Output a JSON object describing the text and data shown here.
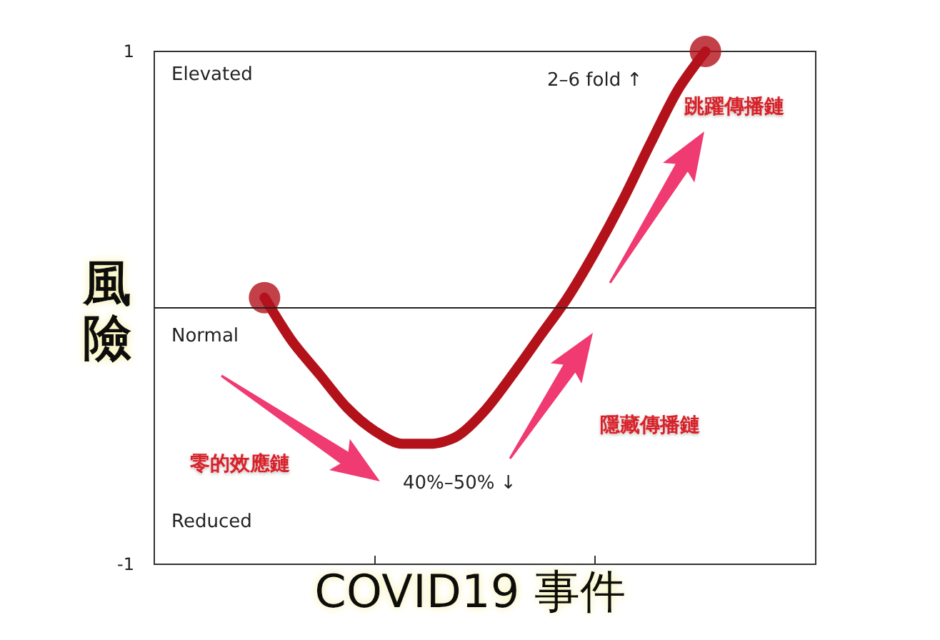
{
  "chart_data": {
    "type": "line",
    "xlabel": "COVID19 事件",
    "ylabel": "風險",
    "categories": [
      null,
      null,
      null,
      null,
      null,
      null,
      null,
      null,
      null,
      null,
      null,
      null,
      null,
      null,
      null,
      null,
      null,
      null,
      null,
      null,
      null,
      null,
      null,
      null,
      null
    ],
    "series": [
      {
        "color": "#b3121b",
        "marker": "none",
        "values": [
          null,
          null,
          null,
          null,
          0.04,
          -0.13,
          -0.26,
          -0.39,
          -0.48,
          -0.53,
          -0.53,
          -0.5,
          -0.4,
          -0.26,
          -0.11,
          0.04,
          0.22,
          0.42,
          0.64,
          0.85,
          1.0,
          null,
          null,
          null,
          null
        ]
      },
      {
        "type": "scatter",
        "color": "#b3121b",
        "marker": "circle",
        "values": [
          null,
          null,
          null,
          null,
          0.04,
          null,
          null,
          null,
          null,
          null,
          null,
          null,
          null,
          null,
          null,
          null,
          null,
          null,
          null,
          null,
          1.0,
          null,
          null,
          null,
          null
        ]
      }
    ],
    "ylim": [
      -1,
      1
    ],
    "yticks": [
      -1,
      1
    ],
    "tick_labels": "y",
    "grid": false,
    "ref_lines": [
      {
        "axis": "y",
        "value": 0,
        "color": "#222222"
      }
    ],
    "annotations": [
      "Elevated",
      "Normal",
      "Reduced",
      "2–6 fold ↑",
      "40%–50% ↓",
      "跳躍傳播鏈",
      "隱藏傳播鏈",
      "零的效應鏈"
    ]
  }
}
